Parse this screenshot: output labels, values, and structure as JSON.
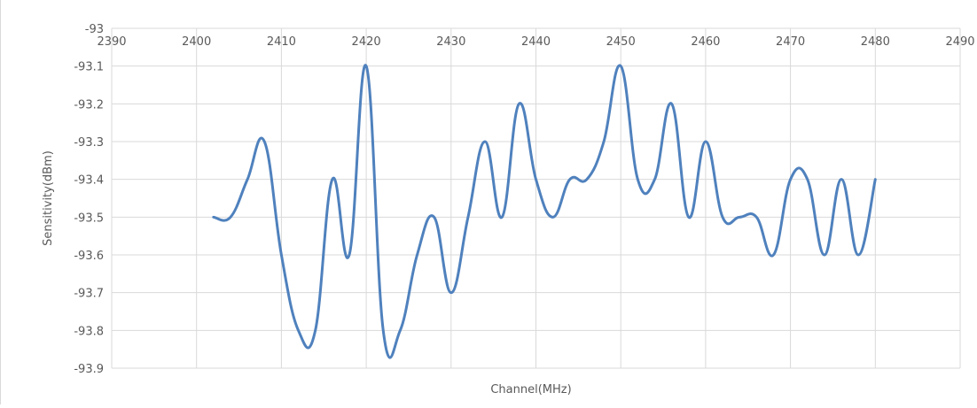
{
  "chart_data": {
    "type": "line",
    "title": "",
    "xlabel": "Channel(MHz)",
    "ylabel": "Sensitivity(dBm)",
    "xlim": [
      2390,
      2490
    ],
    "ylim": [
      -93.9,
      -93
    ],
    "x_ticks": [
      2390,
      2400,
      2410,
      2420,
      2430,
      2440,
      2450,
      2460,
      2470,
      2480,
      2490
    ],
    "y_ticks": [
      -93,
      -93.1,
      -93.2,
      -93.3,
      -93.4,
      -93.5,
      -93.6,
      -93.7,
      -93.8,
      -93.9
    ],
    "x_tick_labels": [
      "2390",
      "2400",
      "2410",
      "2420",
      "2430",
      "2440",
      "2450",
      "2460",
      "2470",
      "2480",
      "2490"
    ],
    "y_tick_labels": [
      "-93",
      "-93.1",
      "-93.2",
      "-93.3",
      "-93.4",
      "-93.5",
      "-93.6",
      "-93.7",
      "-93.8",
      "-93.9"
    ],
    "x_axis_position": "top",
    "grid": true,
    "legend": "none",
    "series": [
      {
        "color": "#4f81bd",
        "x": [
          2402,
          2404,
          2406,
          2408,
          2410,
          2412,
          2414,
          2416,
          2418,
          2420,
          2422,
          2424,
          2426,
          2428,
          2430,
          2432,
          2434,
          2436,
          2438,
          2440,
          2442,
          2444,
          2446,
          2448,
          2450,
          2452,
          2454,
          2456,
          2458,
          2460,
          2462,
          2464,
          2466,
          2468,
          2470,
          2472,
          2474,
          2476,
          2478,
          2480
        ],
        "y": [
          -93.5,
          -93.5,
          -93.4,
          -93.3,
          -93.6,
          -93.8,
          -93.8,
          -93.4,
          -93.6,
          -93.1,
          -93.8,
          -93.8,
          -93.6,
          -93.5,
          -93.7,
          -93.5,
          -93.3,
          -93.5,
          -93.2,
          -93.4,
          -93.5,
          -93.4,
          -93.4,
          -93.3,
          -93.1,
          -93.4,
          -93.4,
          -93.2,
          -93.5,
          -93.3,
          -93.5,
          -93.5,
          -93.5,
          -93.6,
          -93.4,
          -93.4,
          -93.6,
          -93.4,
          -93.6,
          -93.4
        ]
      }
    ]
  }
}
